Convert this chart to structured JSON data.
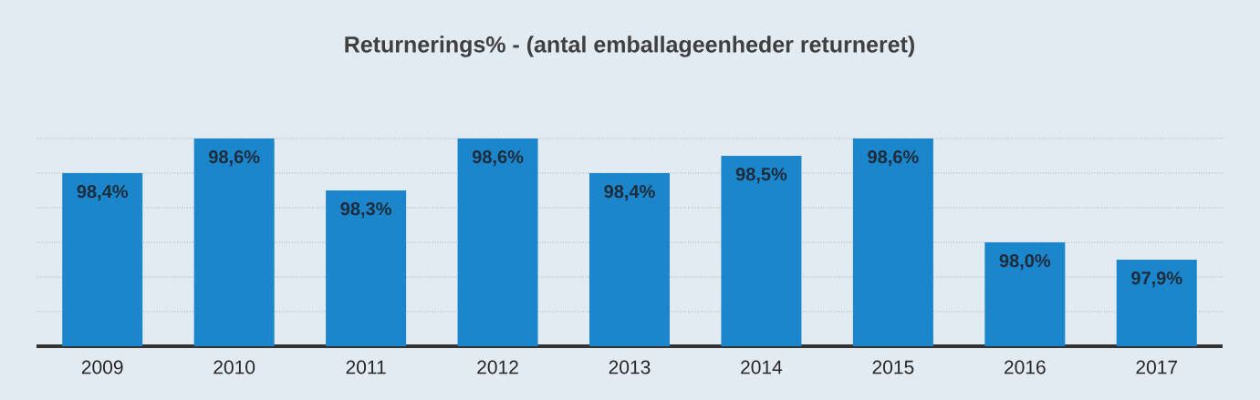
{
  "chart_data": {
    "type": "bar",
    "title": "Returnerings% - (antal emballageenheder returneret)",
    "categories": [
      "2009",
      "2010",
      "2011",
      "2012",
      "2013",
      "2014",
      "2015",
      "2016",
      "2017"
    ],
    "values": [
      98.4,
      98.6,
      98.3,
      98.6,
      98.4,
      98.5,
      98.6,
      98.0,
      97.9
    ],
    "value_labels": [
      "98,4%",
      "98,6%",
      "98,3%",
      "98,6%",
      "98,4%",
      "98,5%",
      "98,6%",
      "98,0%",
      "97,9%"
    ],
    "color": "#1c86cc",
    "ylim": [
      97.4,
      98.6
    ],
    "yticks": [
      {
        "value": 97.6,
        "label": null
      },
      {
        "value": 97.8,
        "label": null
      },
      {
        "value": 98.0,
        "label": null
      },
      {
        "value": 98.2,
        "label": null
      },
      {
        "value": 98.4,
        "label": null
      },
      {
        "value": 98.6,
        "label": null
      }
    ],
    "grid": "y",
    "tick_labels": "x"
  }
}
